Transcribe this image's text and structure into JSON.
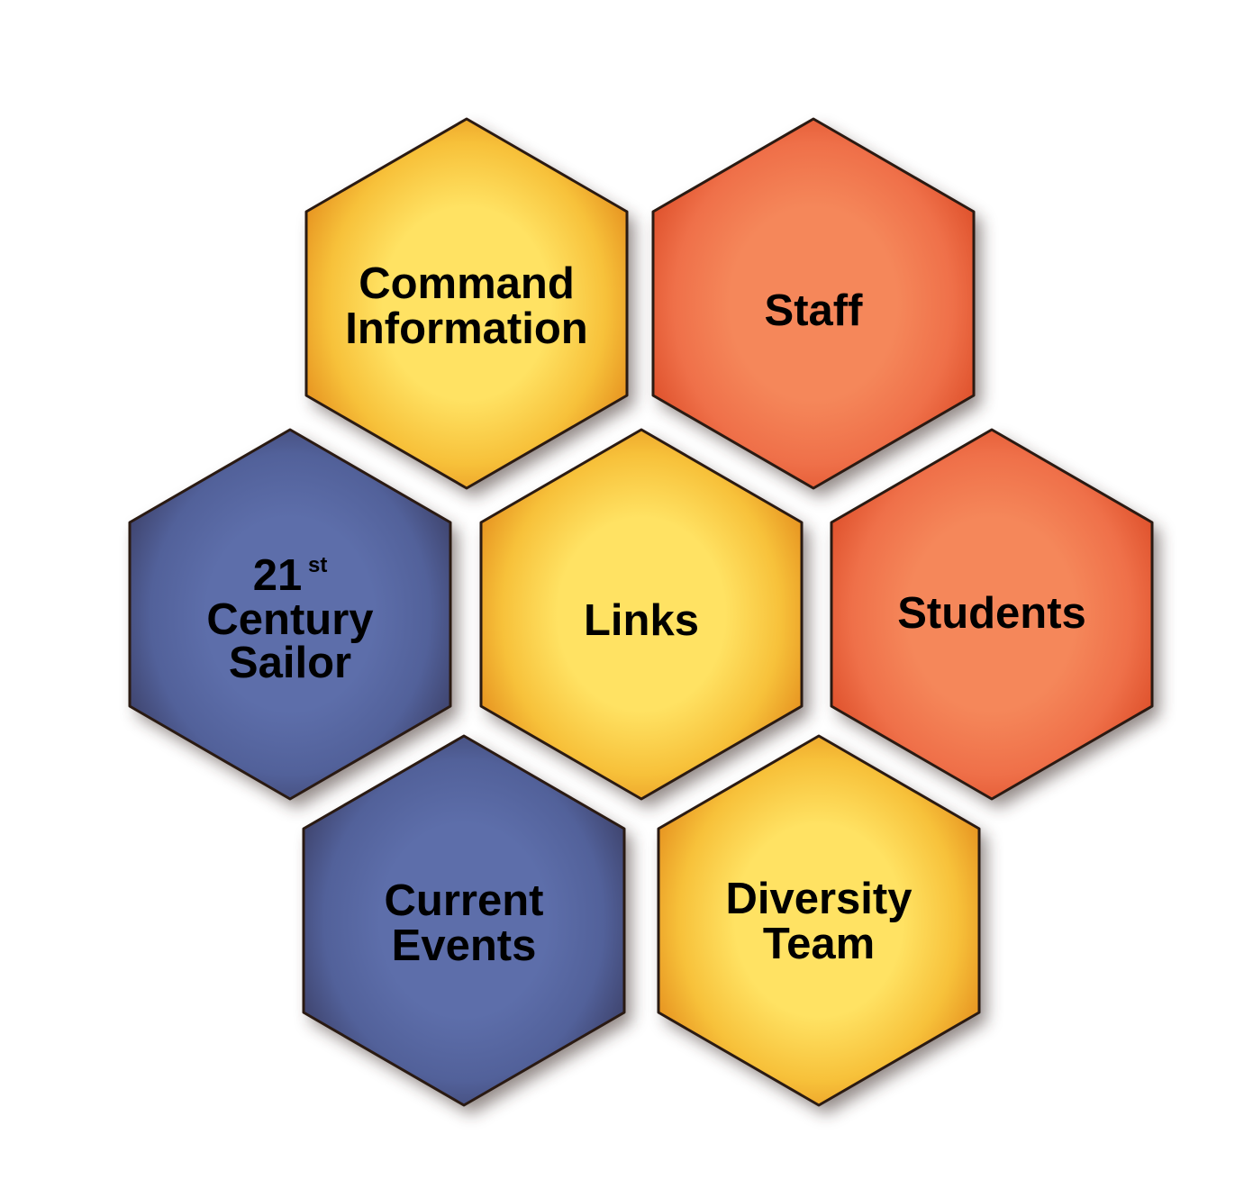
{
  "colors": {
    "gold_center": "#ffe263",
    "gold_mid": "#f7c13a",
    "gold_edge": "#e48d1d",
    "red_center": "#f5875a",
    "red_mid": "#ef7049",
    "red_edge": "#dc4d28",
    "blue_center": "#5d6eaa",
    "blue_mid": "#52619a",
    "blue_edge": "#3c4068",
    "outline": "#2a1a12",
    "shadow": "#3a2a26"
  },
  "tiles": [
    {
      "id": "command-information",
      "theme": "gold",
      "lines": [
        "Command",
        "Information"
      ],
      "icon": "hexagon-tile"
    },
    {
      "id": "staff",
      "theme": "red",
      "lines": [
        "Staff"
      ],
      "icon": "hexagon-tile"
    },
    {
      "id": "21st-century-sailor",
      "theme": "blue",
      "lines": [
        "21",
        "Century",
        "Sailor"
      ],
      "superscript": "st",
      "icon": "hexagon-tile"
    },
    {
      "id": "links",
      "theme": "gold",
      "lines": [
        "Links"
      ],
      "icon": "hexagon-tile"
    },
    {
      "id": "students",
      "theme": "red",
      "lines": [
        "Students"
      ],
      "icon": "hexagon-tile"
    },
    {
      "id": "current-events",
      "theme": "blue",
      "lines": [
        "Current",
        "Events"
      ],
      "icon": "hexagon-tile"
    },
    {
      "id": "diversity-team",
      "theme": "gold",
      "lines": [
        "Diversity",
        "Team"
      ],
      "icon": "hexagon-tile"
    }
  ]
}
